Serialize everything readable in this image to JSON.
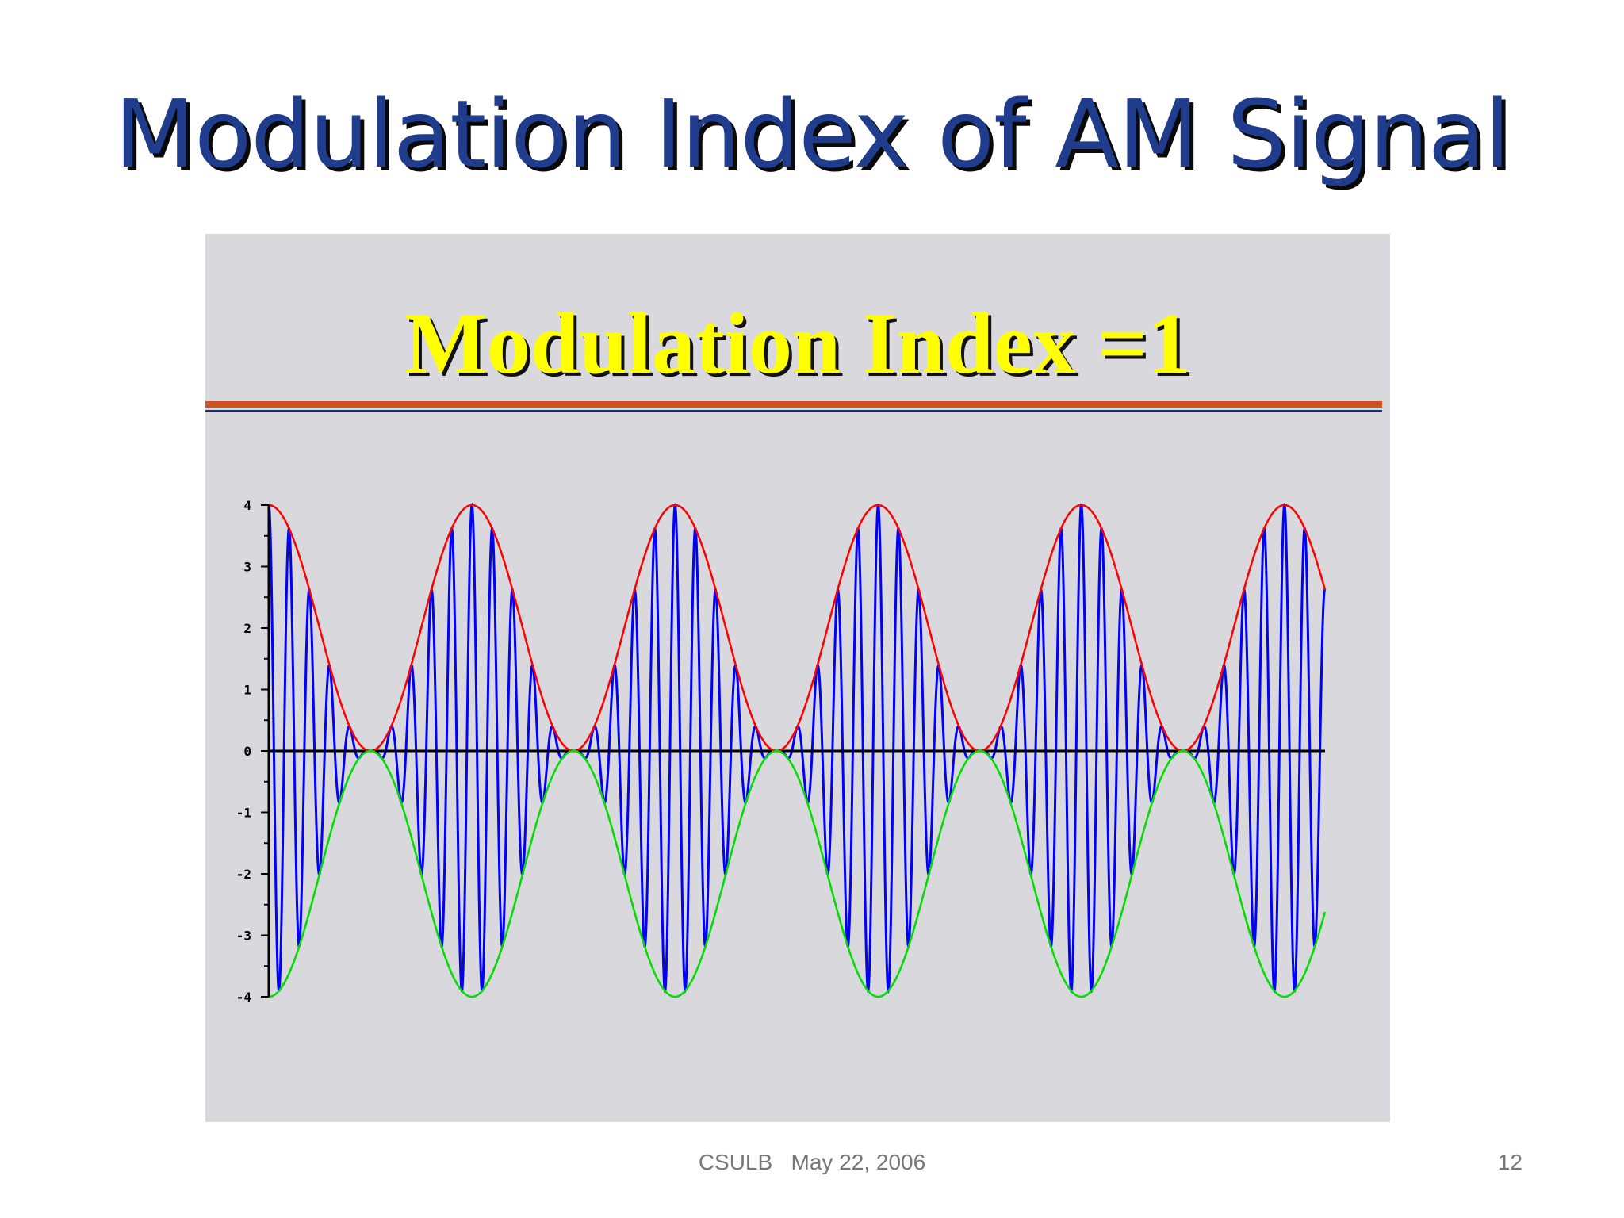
{
  "slide": {
    "title": "Modulation Index of AM Signal",
    "footer_text": "CSULB   May 22, 2006",
    "page_number": "12"
  },
  "figure": {
    "title": "Modulation Index =1"
  },
  "colors": {
    "title_text": "#1f3d8c",
    "figure_bg": "#d9d8dc",
    "figure_title": "#ffff00",
    "upper_envelope": "#ff0000",
    "lower_envelope": "#00dd00",
    "signal": "#0000ff",
    "axis": "#000000"
  },
  "chart_data": {
    "type": "line",
    "modulation_index": 1,
    "carrier_amplitude": 2,
    "ylim": [
      -4,
      4
    ],
    "yticks": [
      "4",
      "3",
      "2",
      "1",
      "0",
      "-1",
      "-2",
      "-3",
      "-4"
    ],
    "xlim": [
      0,
      5.2
    ],
    "envelope_cycles": 5.2,
    "carrier_cycles_per_envelope": 10,
    "grid": false,
    "series": [
      {
        "key": "upper",
        "color": "#ff0000",
        "formula": "2 + 2*cos(2*pi*t)"
      },
      {
        "key": "lower",
        "color": "#00dd00",
        "formula": "-(2 + 2*cos(2*pi*t))"
      },
      {
        "key": "am",
        "color": "#0000ff",
        "formula": "(2 + 2*cos(2*pi*t)) * cos(2*pi*10*t)"
      }
    ]
  }
}
